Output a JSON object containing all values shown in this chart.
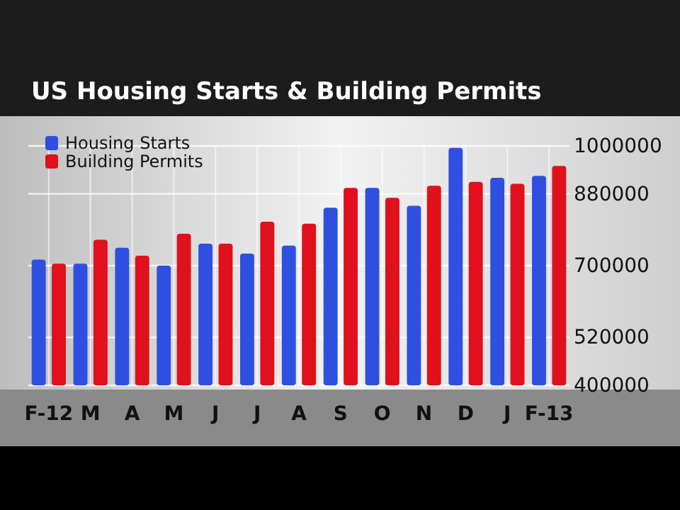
{
  "chart_data": {
    "type": "bar",
    "title": "US Housing Starts & Building Permits",
    "categories": [
      "F-12",
      "M",
      "A",
      "M",
      "J",
      "J",
      "A",
      "S",
      "O",
      "N",
      "D",
      "J",
      "F-13"
    ],
    "series": [
      {
        "name": "Housing Starts",
        "color": "#2f4fe0",
        "values": [
          715000,
          705000,
          745000,
          700000,
          755000,
          730000,
          750000,
          845000,
          895000,
          850000,
          995000,
          920000,
          925000
        ]
      },
      {
        "name": "Building Permits",
        "color": "#e0101c",
        "values": [
          705000,
          765000,
          725000,
          780000,
          755000,
          810000,
          805000,
          895000,
          870000,
          900000,
          910000,
          905000,
          950000
        ]
      }
    ],
    "ylim": [
      400000,
      1000000
    ],
    "yticks": [
      400000,
      520000,
      700000,
      880000,
      1000000
    ],
    "grid": true,
    "legend": "top left"
  }
}
